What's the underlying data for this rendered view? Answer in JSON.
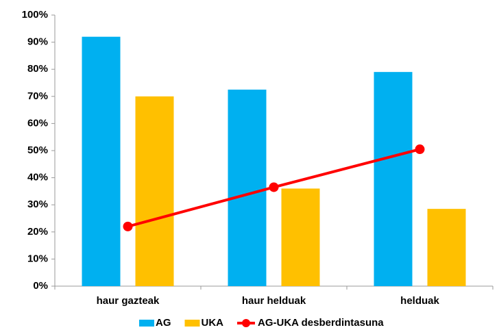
{
  "chart_data": {
    "type": "bar",
    "categories": [
      "haur gazteak",
      "haur helduak",
      "helduak"
    ],
    "series": [
      {
        "name": "AG",
        "color": "#00b0f0",
        "values": [
          92,
          72.5,
          79
        ]
      },
      {
        "name": "UKA",
        "color": "#ffc000",
        "values": [
          70,
          36,
          28.5
        ]
      },
      {
        "name": "AG-UKA desberdintasuna",
        "color": "#ff0000",
        "type": "line",
        "values": [
          22,
          36.5,
          50.5
        ]
      }
    ],
    "ylim": [
      0,
      100
    ],
    "yticks": [
      {
        "value": 0,
        "label": "0%"
      },
      {
        "value": 10,
        "label": "10%"
      },
      {
        "value": 20,
        "label": "20%"
      },
      {
        "value": 30,
        "label": "30%"
      },
      {
        "value": 40,
        "label": "40%"
      },
      {
        "value": 50,
        "label": "50%"
      },
      {
        "value": 60,
        "label": "60%"
      },
      {
        "value": 70,
        "label": "70%"
      },
      {
        "value": 80,
        "label": "80%"
      },
      {
        "value": 90,
        "label": "90%"
      },
      {
        "value": 100,
        "label": "100%"
      }
    ],
    "grid": false,
    "legend": "bottom"
  }
}
